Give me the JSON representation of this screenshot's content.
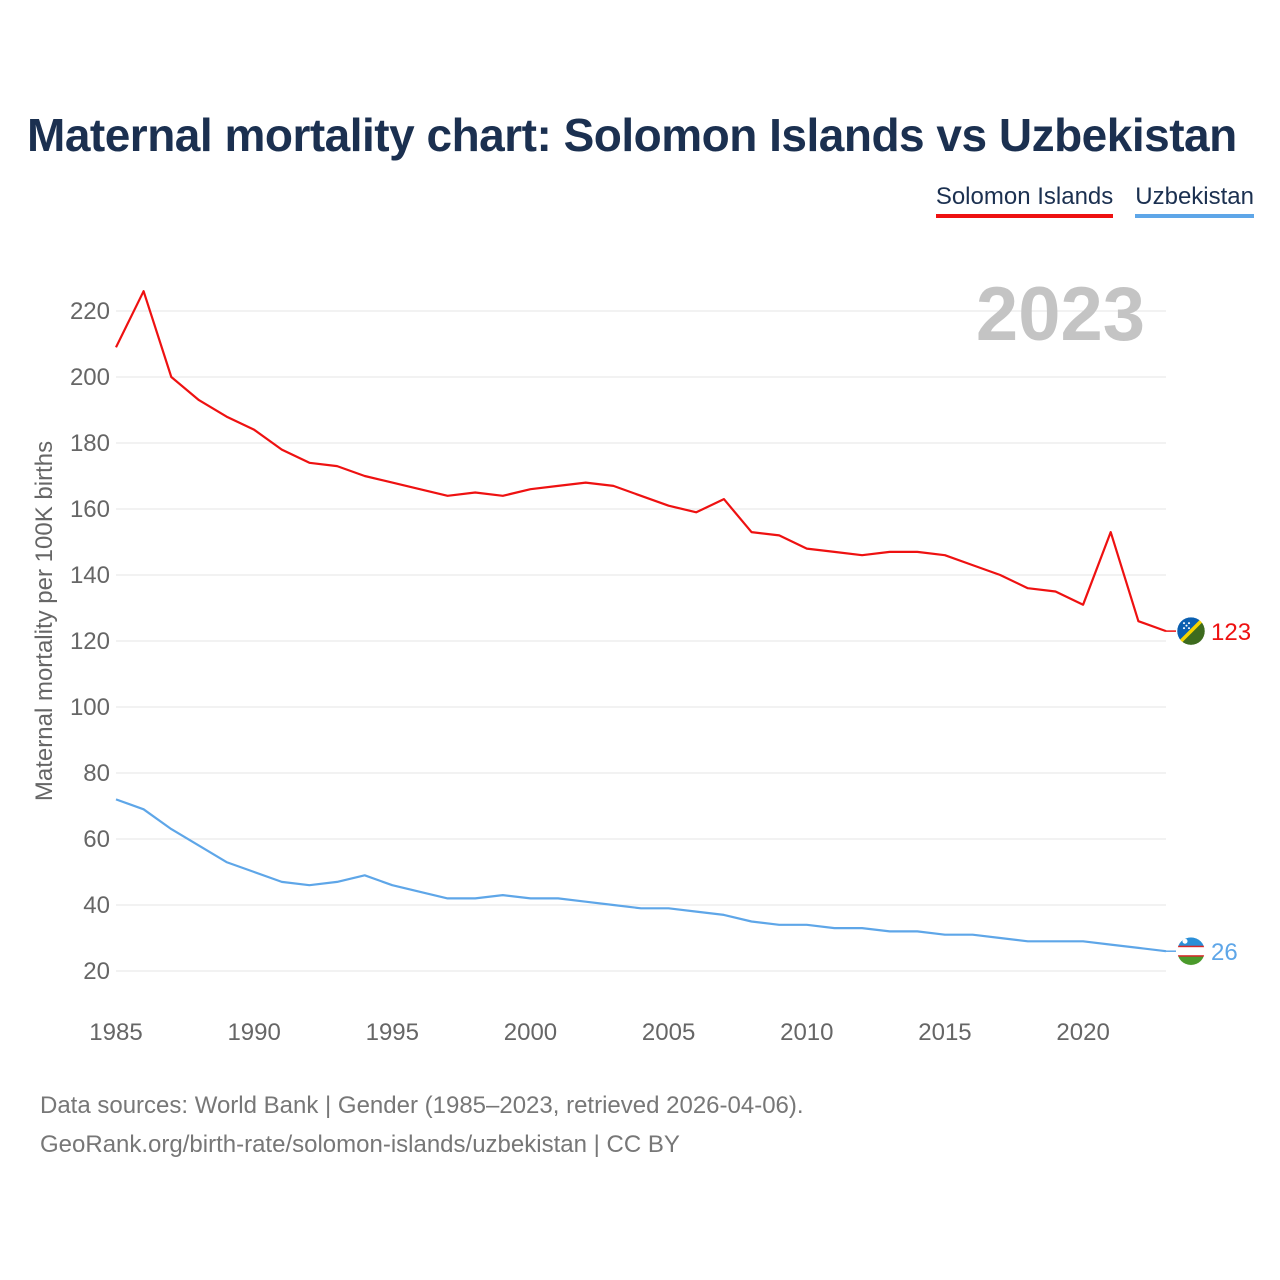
{
  "title": "Maternal mortality chart: Solomon Islands vs Uzbekistan",
  "year_label": "2023",
  "legend": [
    {
      "name": "Solomon Islands",
      "color": "#ee1111"
    },
    {
      "name": "Uzbekistan",
      "color": "#5ea6e8"
    }
  ],
  "footer": {
    "source": "Data sources: World Bank | Gender (1985–2023, retrieved 2026-04-06).",
    "attribution": "GeoRank.org/birth-rate/solomon-islands/uzbekistan | CC BY"
  },
  "chart_data": {
    "type": "line",
    "title": "Maternal mortality chart: Solomon Islands vs Uzbekistan",
    "xlabel": "",
    "ylabel": "Maternal mortality per 100K births",
    "xlim": [
      1985,
      2023
    ],
    "ylim": [
      10,
      230
    ],
    "x_ticks": [
      1985,
      1990,
      1995,
      2000,
      2005,
      2010,
      2015,
      2020
    ],
    "y_ticks": [
      20,
      40,
      60,
      80,
      100,
      120,
      140,
      160,
      180,
      200,
      220
    ],
    "grid": true,
    "legend_position": "top-right",
    "x": [
      1985,
      1986,
      1987,
      1988,
      1989,
      1990,
      1991,
      1992,
      1993,
      1994,
      1995,
      1996,
      1997,
      1998,
      1999,
      2000,
      2001,
      2002,
      2003,
      2004,
      2005,
      2006,
      2007,
      2008,
      2009,
      2010,
      2011,
      2012,
      2013,
      2014,
      2015,
      2016,
      2017,
      2018,
      2019,
      2020,
      2021,
      2022,
      2023
    ],
    "series": [
      {
        "name": "Solomon Islands",
        "color": "#ee1111",
        "end_label": "123",
        "flag_icon": "solomon-islands-flag-icon",
        "values": [
          209,
          226,
          200,
          193,
          188,
          184,
          178,
          174,
          173,
          170,
          168,
          166,
          164,
          165,
          164,
          166,
          167,
          168,
          167,
          164,
          161,
          159,
          163,
          153,
          152,
          148,
          147,
          146,
          147,
          147,
          146,
          143,
          140,
          136,
          135,
          131,
          153,
          126,
          123
        ]
      },
      {
        "name": "Uzbekistan",
        "color": "#5ea6e8",
        "end_label": "26",
        "flag_icon": "uzbekistan-flag-icon",
        "values": [
          72,
          69,
          63,
          58,
          53,
          50,
          47,
          46,
          47,
          49,
          46,
          44,
          42,
          42,
          43,
          42,
          42,
          41,
          40,
          39,
          39,
          38,
          37,
          35,
          34,
          34,
          33,
          33,
          32,
          32,
          31,
          31,
          30,
          29,
          29,
          29,
          28,
          27,
          26
        ]
      }
    ]
  }
}
